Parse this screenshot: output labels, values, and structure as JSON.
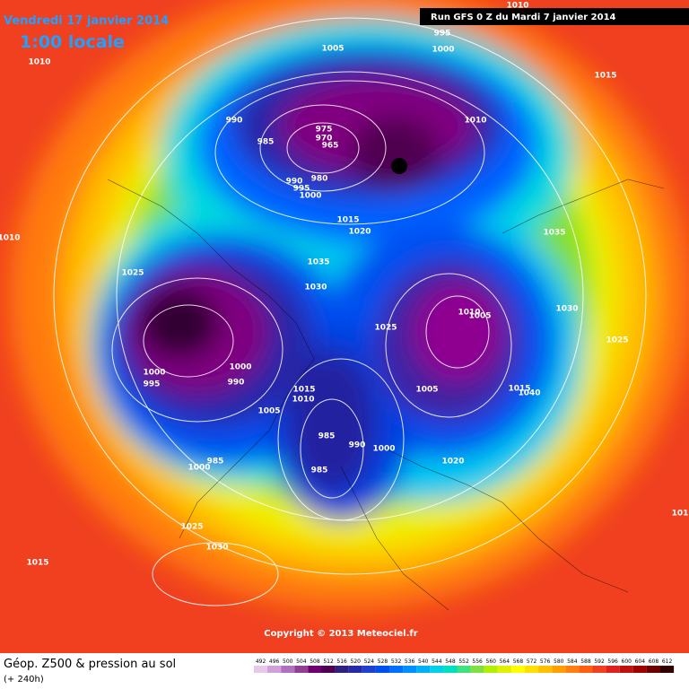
{
  "header": {
    "date": "Vendredi 17 janvier 2014",
    "time": "1:00 locale",
    "run": "Run GFS 0 Z du Mardi 7 janvier 2014"
  },
  "isobars": [
    "995",
    "1000",
    "1010",
    "1010",
    "1005",
    "1015",
    "990",
    "985",
    "975",
    "970",
    "965",
    "980",
    "990",
    "995",
    "1000",
    "1010",
    "1015",
    "1020",
    "1010",
    "1035",
    "1025",
    "1035",
    "1030",
    "1030",
    "1025",
    "1025",
    "1005",
    "1010",
    "1000",
    "995",
    "1000",
    "990",
    "1015",
    "1010",
    "1005",
    "1005",
    "1015",
    "1040",
    "985",
    "990",
    "1000",
    "985",
    "1020",
    "985",
    "1000",
    "1025",
    "1030",
    "1015",
    "101"
  ],
  "copyright": "Copyright © 2013 Meteociel.fr",
  "legend": {
    "title": "Géop. Z500 & pression au sol",
    "subtitle": "(+ 240h)",
    "scale": [
      492,
      496,
      500,
      504,
      508,
      512,
      516,
      520,
      524,
      528,
      532,
      536,
      540,
      544,
      548,
      552,
      556,
      560,
      564,
      568,
      572,
      576,
      580,
      584,
      588,
      592,
      596,
      600,
      604,
      608,
      612
    ]
  }
}
